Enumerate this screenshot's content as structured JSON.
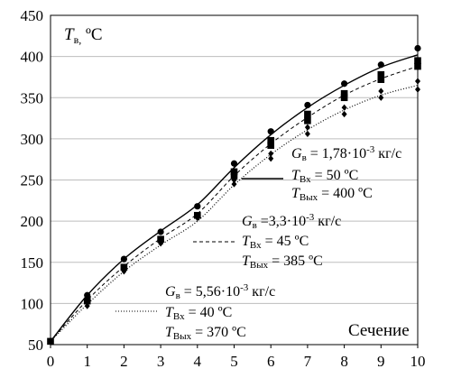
{
  "chart_data": {
    "type": "line",
    "ylabel_main": "T",
    "ylabel_sub": "в,",
    "ylabel_unit": " ºС",
    "xlabel": "Сечение",
    "xlim": [
      0,
      10
    ],
    "ylim": [
      50,
      450
    ],
    "xticks": [
      0,
      1,
      2,
      3,
      4,
      5,
      6,
      7,
      8,
      9,
      10
    ],
    "yticks": [
      50,
      100,
      150,
      200,
      250,
      300,
      350,
      400,
      450
    ],
    "grid": "horizontal",
    "series": [
      {
        "marker": "circle",
        "line": "solid",
        "color": "#000000",
        "x": [
          0,
          1,
          2,
          3,
          4,
          5,
          6,
          7,
          8,
          9,
          10
        ],
        "markers": [
          [
            0,
            54
          ],
          [
            1,
            110
          ],
          [
            2,
            154
          ],
          [
            3,
            187
          ],
          [
            4,
            218
          ],
          [
            5,
            270
          ],
          [
            6,
            309
          ],
          [
            7,
            341
          ],
          [
            8,
            367
          ],
          [
            9,
            390
          ],
          [
            10,
            410
          ]
        ],
        "fit": [
          54,
          110,
          154,
          188,
          220,
          265,
          305,
          338,
          365,
          387,
          402
        ]
      },
      {
        "marker": "square",
        "line": "dashed",
        "color": "#000000",
        "x": [
          0,
          1,
          2,
          3,
          4,
          5,
          6,
          7,
          8,
          9,
          10
        ],
        "markers": [
          [
            0,
            54
          ],
          [
            1,
            103
          ],
          [
            2,
            144
          ],
          [
            3,
            178
          ],
          [
            4,
            207
          ],
          [
            5,
            260
          ],
          [
            5,
            255
          ],
          [
            6,
            298
          ],
          [
            6,
            292
          ],
          [
            7,
            330
          ],
          [
            7,
            322
          ],
          [
            8,
            355
          ],
          [
            8,
            350
          ],
          [
            9,
            378
          ],
          [
            9,
            372
          ],
          [
            10,
            395
          ],
          [
            10,
            388
          ]
        ],
        "fit": [
          54,
          104,
          145,
          179,
          209,
          255,
          294,
          326,
          353,
          373,
          388
        ]
      },
      {
        "marker": "diamond",
        "line": "dotted",
        "color": "#000000",
        "x": [
          0,
          1,
          2,
          3,
          4,
          5,
          6,
          7,
          8,
          9,
          10
        ],
        "markers": [
          [
            0,
            54
          ],
          [
            1,
            97
          ],
          [
            2,
            139
          ],
          [
            3,
            173
          ],
          [
            4,
            204
          ],
          [
            5,
            250
          ],
          [
            5,
            245
          ],
          [
            6,
            282
          ],
          [
            6,
            276
          ],
          [
            7,
            314
          ],
          [
            7,
            306
          ],
          [
            8,
            338
          ],
          [
            8,
            330
          ],
          [
            9,
            358
          ],
          [
            9,
            350
          ],
          [
            10,
            370
          ],
          [
            10,
            360
          ]
        ],
        "fit": [
          54,
          99,
          139,
          171,
          200,
          244,
          281,
          311,
          335,
          353,
          365
        ]
      }
    ],
    "annotations": [
      {
        "g_main": "G",
        "g_sub": "в",
        "g_value": " = 1,78·10",
        "g_exp": "-3",
        "g_unit": " кг/с",
        "tin_main": "T",
        "tin_sub": "Вх",
        "tin_value": " = 50 ºС",
        "tout_main": "T",
        "tout_sub": "Вых",
        "tout_value": " = 400 ºС"
      },
      {
        "g_main": "G",
        "g_sub": "в",
        "g_value": " =3,3·10",
        "g_exp": "-3",
        "g_unit": " кг/с",
        "tin_main": "T",
        "tin_sub": "Вх",
        "tin_value": " = 45 ºС",
        "tout_main": "T",
        "tout_sub": "Вых",
        "tout_value": " = 385 ºС"
      },
      {
        "g_main": "G",
        "g_sub": "в",
        "g_value": " = 5,56·10",
        "g_exp": "-3",
        "g_unit": " кг/с",
        "tin_main": "T",
        "tin_sub": "Вх",
        "tin_value": " = 40 ºС",
        "tout_main": "T",
        "tout_sub": "Вых",
        "tout_value": " = 370 ºС"
      }
    ]
  }
}
